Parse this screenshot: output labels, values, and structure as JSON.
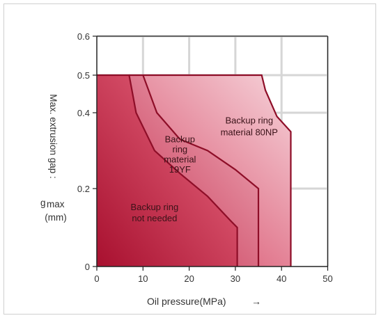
{
  "chart_data": {
    "type": "area",
    "title": "",
    "xlabel": "Oil pressure(MPa)",
    "xlabel_arrow": "→",
    "ylabel_line1": "Max. extrusion gap :",
    "ylabel_symbol": "g",
    "ylabel_subscript": "max",
    "ylabel_unit": "(mm)",
    "xlim": [
      0,
      50
    ],
    "ylim": [
      0,
      0.6
    ],
    "y_scale": "nonlinear (ticks 0.2 and 0.4 drawn wide, 0.4–0.6 compressed)",
    "x_ticks": [
      {
        "value": 0,
        "label": "0"
      },
      {
        "value": 10,
        "label": "10"
      },
      {
        "value": 20,
        "label": "20"
      },
      {
        "value": 30,
        "label": "30"
      },
      {
        "value": 40,
        "label": "40"
      },
      {
        "value": 50,
        "label": "50"
      }
    ],
    "y_ticks": [
      {
        "value": 0,
        "label": "0"
      },
      {
        "value": 0.2,
        "label": "0.2"
      },
      {
        "value": 0.4,
        "label": "0.4"
      },
      {
        "value": 0.5,
        "label": "0.5"
      },
      {
        "value": 0.6,
        "label": "0.6"
      }
    ],
    "grid": true,
    "series": [
      {
        "label_lines": [
          "Backup ring",
          "not needed"
        ],
        "color": "#c8243f",
        "boundary": [
          [
            0,
            0.5
          ],
          [
            7,
            0.5
          ],
          [
            8.5,
            0.4
          ],
          [
            12.5,
            0.3
          ],
          [
            18,
            0.24
          ],
          [
            24,
            0.18
          ],
          [
            29,
            0.117
          ],
          [
            30.4,
            0.1
          ],
          [
            30.4,
            0
          ]
        ]
      },
      {
        "label_lines": [
          "Backup",
          "ring",
          "material",
          "19YF"
        ],
        "color": "#d85068",
        "boundary": [
          [
            7,
            0.5
          ],
          [
            10,
            0.5
          ],
          [
            13,
            0.4
          ],
          [
            18,
            0.33
          ],
          [
            24,
            0.3
          ],
          [
            30,
            0.25
          ],
          [
            35,
            0.2
          ],
          [
            35,
            0
          ]
        ]
      },
      {
        "label_lines": [
          "Backup ring",
          "material 80NP"
        ],
        "color": "#eba1af",
        "boundary": [
          [
            10,
            0.5
          ],
          [
            35.7,
            0.5
          ],
          [
            36.5,
            0.46
          ],
          [
            39,
            0.39
          ],
          [
            42,
            0.35
          ],
          [
            42,
            0
          ]
        ]
      }
    ]
  }
}
